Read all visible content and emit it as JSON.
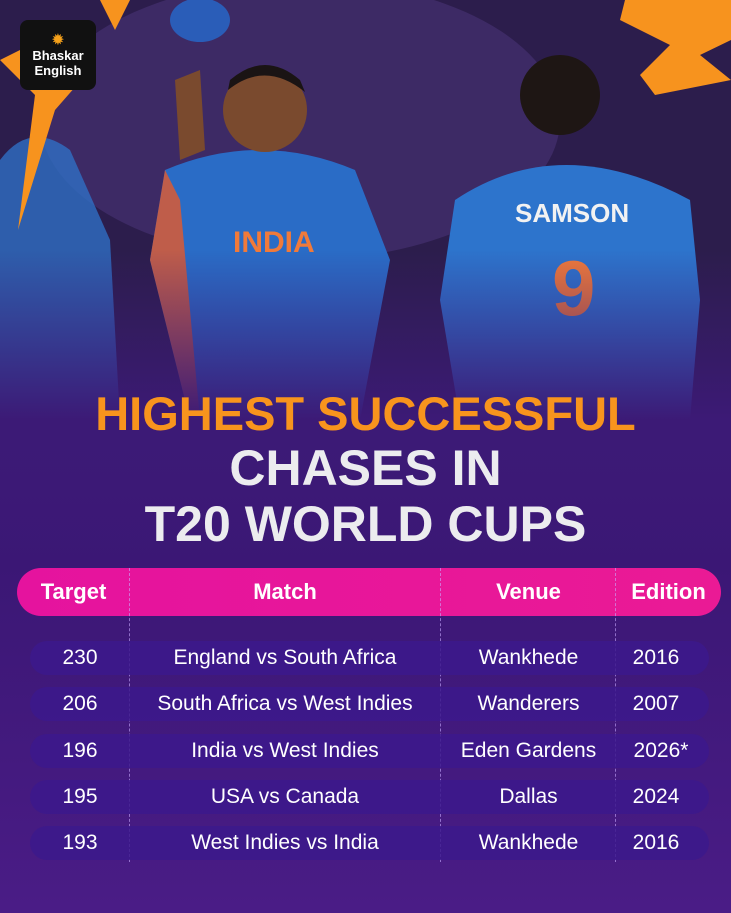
{
  "brand": {
    "logo_line1": "Bhaskar",
    "logo_line2": "English",
    "logo_icon": "sun-icon"
  },
  "photo": {
    "jersey_text": "INDIA",
    "player_name": "SAMSON",
    "player_number": "9"
  },
  "title": {
    "line1": "HIGHEST SUCCESSFUL",
    "line2": "CHASES IN",
    "line3": "T20 WORLD CUPS"
  },
  "table": {
    "headers": [
      "Target",
      "Match",
      "Venue",
      "Edition"
    ],
    "rows": [
      [
        "230",
        "England vs South Africa",
        "Wankhede",
        "2016"
      ],
      [
        "206",
        "South Africa vs West Indies",
        "Wanderers",
        "2007"
      ],
      [
        "196",
        "India vs West Indies",
        "Eden Gardens",
        "2026*"
      ],
      [
        "195",
        "USA vs Canada",
        "Dallas",
        "2024"
      ],
      [
        "193",
        "West Indies vs India",
        "Wankhede",
        "2016"
      ]
    ]
  },
  "colors": {
    "title_accent": "#f8941d",
    "header_bar": "#e5139e",
    "row_bg": "#3c198c",
    "background": "#3d1c78"
  }
}
